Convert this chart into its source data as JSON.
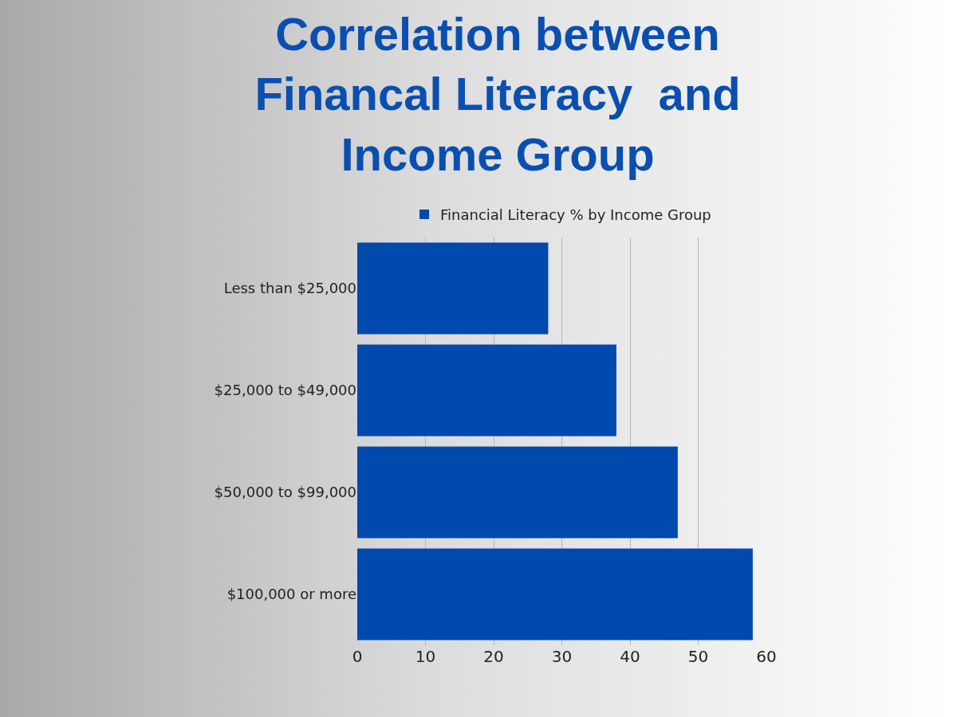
{
  "chart_data": {
    "type": "bar",
    "orientation": "horizontal",
    "title": "Correlation between Financal Literacy  and Income Group",
    "categories": [
      "Less than $25,000",
      "$25,000 to $49,000",
      "$50,000 to $99,000",
      "$100,000 or more"
    ],
    "series": [
      {
        "name": "Financial Literacy % by Income Group",
        "color": "#004aad",
        "values": [
          28,
          38,
          47,
          58
        ]
      }
    ],
    "xlim": [
      0,
      60
    ],
    "xticks": [
      0,
      10,
      20,
      30,
      40,
      50,
      60
    ],
    "grid": "x",
    "legend": "top"
  }
}
